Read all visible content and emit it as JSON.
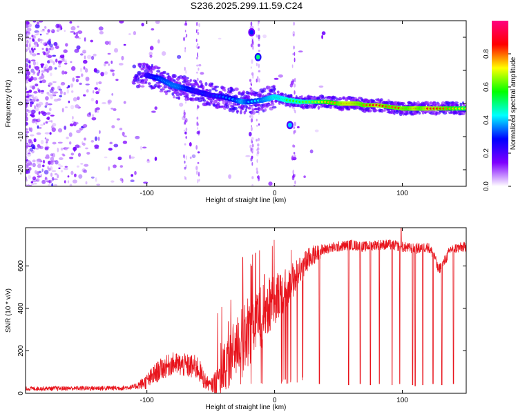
{
  "title": "S236.2025.299.11.59.C24",
  "chart_data": [
    {
      "type": "heatmap",
      "name": "spectrogram",
      "xlabel": "Height of straight line (km)",
      "ylabel": "Frequency (Hz)",
      "xlim": [
        -195,
        150
      ],
      "ylim": [
        -25,
        25
      ],
      "xticks": [
        -100,
        0,
        100
      ],
      "yticks": [
        -20,
        -10,
        0,
        10,
        20
      ],
      "zlim": [
        0,
        1
      ],
      "colorbar": {
        "label": "Normalized spectral amplitude",
        "ticks": [
          "0.0",
          "0.2",
          "0.4",
          "0.6",
          "0.8"
        ],
        "tick_values": [
          0,
          0.2,
          0.4,
          0.6,
          0.8
        ],
        "colors": [
          "#ffffff",
          "#7f00ff",
          "#0000ff",
          "#00ffff",
          "#00ff00",
          "#ffff00",
          "#ff0000",
          "#ff0080"
        ]
      },
      "ridge": [
        {
          "x": -100,
          "y": 8.5,
          "z": 0.3
        },
        {
          "x": -95,
          "y": 8,
          "z": 0.35
        },
        {
          "x": -90,
          "y": 7.5,
          "z": 0.4
        },
        {
          "x": -85,
          "y": 6.5,
          "z": 0.42
        },
        {
          "x": -80,
          "y": 5.5,
          "z": 0.45
        },
        {
          "x": -75,
          "y": 5,
          "z": 0.45
        },
        {
          "x": -70,
          "y": 4.5,
          "z": 0.4
        },
        {
          "x": -65,
          "y": 4,
          "z": 0.35
        },
        {
          "x": -60,
          "y": 3.5,
          "z": 0.3
        },
        {
          "x": -55,
          "y": 3,
          "z": 0.35
        },
        {
          "x": -50,
          "y": 2.5,
          "z": 0.3
        },
        {
          "x": -40,
          "y": 2,
          "z": 0.35
        },
        {
          "x": -30,
          "y": 1,
          "z": 0.4
        },
        {
          "x": -25,
          "y": 0.5,
          "z": 0.5
        },
        {
          "x": -20,
          "y": 0.5,
          "z": 0.4
        },
        {
          "x": -10,
          "y": 1,
          "z": 0.45
        },
        {
          "x": -5,
          "y": 1.5,
          "z": 0.5
        },
        {
          "x": 0,
          "y": 2,
          "z": 0.55
        },
        {
          "x": 5,
          "y": 1.5,
          "z": 0.55
        },
        {
          "x": 10,
          "y": 1,
          "z": 0.6
        },
        {
          "x": 20,
          "y": 0.5,
          "z": 0.6
        },
        {
          "x": 30,
          "y": 0.5,
          "z": 0.65
        },
        {
          "x": 40,
          "y": 0.5,
          "z": 0.75
        },
        {
          "x": 50,
          "y": 0,
          "z": 0.8
        },
        {
          "x": 55,
          "y": 0,
          "z": 0.9
        },
        {
          "x": 60,
          "y": 0,
          "z": 0.9
        },
        {
          "x": 65,
          "y": 0,
          "z": 0.85
        },
        {
          "x": 70,
          "y": -0.5,
          "z": 0.8
        },
        {
          "x": 80,
          "y": -0.5,
          "z": 0.9
        },
        {
          "x": 90,
          "y": -1,
          "z": 0.8
        },
        {
          "x": 100,
          "y": -1.5,
          "z": 0.85
        },
        {
          "x": 105,
          "y": -1.5,
          "z": 0.8
        },
        {
          "x": 110,
          "y": -1.5,
          "z": 0.9
        },
        {
          "x": 115,
          "y": -1.5,
          "z": 0.8
        },
        {
          "x": 120,
          "y": -1.5,
          "z": 0.9
        },
        {
          "x": 130,
          "y": -1.5,
          "z": 0.85
        },
        {
          "x": 140,
          "y": -1.5,
          "z": 0.75
        },
        {
          "x": 150,
          "y": -1.5,
          "z": 0.7
        }
      ],
      "hot_spots": [
        {
          "x": -18,
          "y": 21.5,
          "z": 0.3
        },
        {
          "x": -13,
          "y": 14,
          "z": 0.5
        },
        {
          "x": 12,
          "y": -6.5,
          "z": 0.4
        }
      ]
    },
    {
      "type": "line",
      "name": "snr",
      "xlabel": "Height of straight line (km)",
      "ylabel": "SNR (10 * v/v)",
      "xlim": [
        -195,
        150
      ],
      "ylim": [
        0,
        780
      ],
      "xticks": [
        -100,
        0,
        100
      ],
      "yticks": [
        0,
        200,
        400,
        600
      ],
      "color": "#e8141c",
      "envelope": [
        {
          "x": -195,
          "y": 22
        },
        {
          "x": -120,
          "y": 25
        },
        {
          "x": -110,
          "y": 30
        },
        {
          "x": -100,
          "y": 55
        },
        {
          "x": -90,
          "y": 110
        },
        {
          "x": -80,
          "y": 140
        },
        {
          "x": -70,
          "y": 130
        },
        {
          "x": -60,
          "y": 120
        },
        {
          "x": -55,
          "y": 60
        },
        {
          "x": -50,
          "y": 35
        },
        {
          "x": -45,
          "y": 60
        },
        {
          "x": -40,
          "y": 100
        },
        {
          "x": -35,
          "y": 160
        },
        {
          "x": -30,
          "y": 230
        },
        {
          "x": -25,
          "y": 260
        },
        {
          "x": -20,
          "y": 300
        },
        {
          "x": -15,
          "y": 330
        },
        {
          "x": -10,
          "y": 360
        },
        {
          "x": -5,
          "y": 410
        },
        {
          "x": 0,
          "y": 440
        },
        {
          "x": 5,
          "y": 470
        },
        {
          "x": 10,
          "y": 500
        },
        {
          "x": 15,
          "y": 540
        },
        {
          "x": 20,
          "y": 580
        },
        {
          "x": 25,
          "y": 620
        },
        {
          "x": 30,
          "y": 650
        },
        {
          "x": 40,
          "y": 680
        },
        {
          "x": 50,
          "y": 690
        },
        {
          "x": 60,
          "y": 700
        },
        {
          "x": 70,
          "y": 690
        },
        {
          "x": 80,
          "y": 700
        },
        {
          "x": 90,
          "y": 700
        },
        {
          "x": 100,
          "y": 690
        },
        {
          "x": 110,
          "y": 680
        },
        {
          "x": 120,
          "y": 690
        },
        {
          "x": 125,
          "y": 650
        },
        {
          "x": 128,
          "y": 580
        },
        {
          "x": 132,
          "y": 610
        },
        {
          "x": 138,
          "y": 680
        },
        {
          "x": 150,
          "y": 690
        }
      ],
      "noise_amplitude": [
        {
          "x": -195,
          "y": 10
        },
        {
          "x": -110,
          "y": 12
        },
        {
          "x": -95,
          "y": 50
        },
        {
          "x": -60,
          "y": 60
        },
        {
          "x": -50,
          "y": 25
        },
        {
          "x": -40,
          "y": 120
        },
        {
          "x": -20,
          "y": 170
        },
        {
          "x": 0,
          "y": 120
        },
        {
          "x": 25,
          "y": 60
        },
        {
          "x": 40,
          "y": 25
        },
        {
          "x": 150,
          "y": 25
        }
      ],
      "dropouts": [
        {
          "x": 35,
          "y": 45
        },
        {
          "x": 58,
          "y": 40
        },
        {
          "x": 67,
          "y": 45
        },
        {
          "x": 75,
          "y": 40
        },
        {
          "x": 82,
          "y": 45
        },
        {
          "x": 92,
          "y": 40
        },
        {
          "x": 98,
          "y": 45
        },
        {
          "x": 108,
          "y": 40
        },
        {
          "x": 110,
          "y": 35
        },
        {
          "x": 116,
          "y": 40
        },
        {
          "x": 124,
          "y": 45
        },
        {
          "x": 131,
          "y": 40
        },
        {
          "x": 140,
          "y": 45
        }
      ],
      "peaks": [
        {
          "x": -25,
          "y": 640
        },
        {
          "x": -18,
          "y": 600
        },
        {
          "x": -15,
          "y": 660
        },
        {
          "x": -8,
          "y": 560
        },
        {
          "x": 99,
          "y": 780
        }
      ]
    }
  ]
}
